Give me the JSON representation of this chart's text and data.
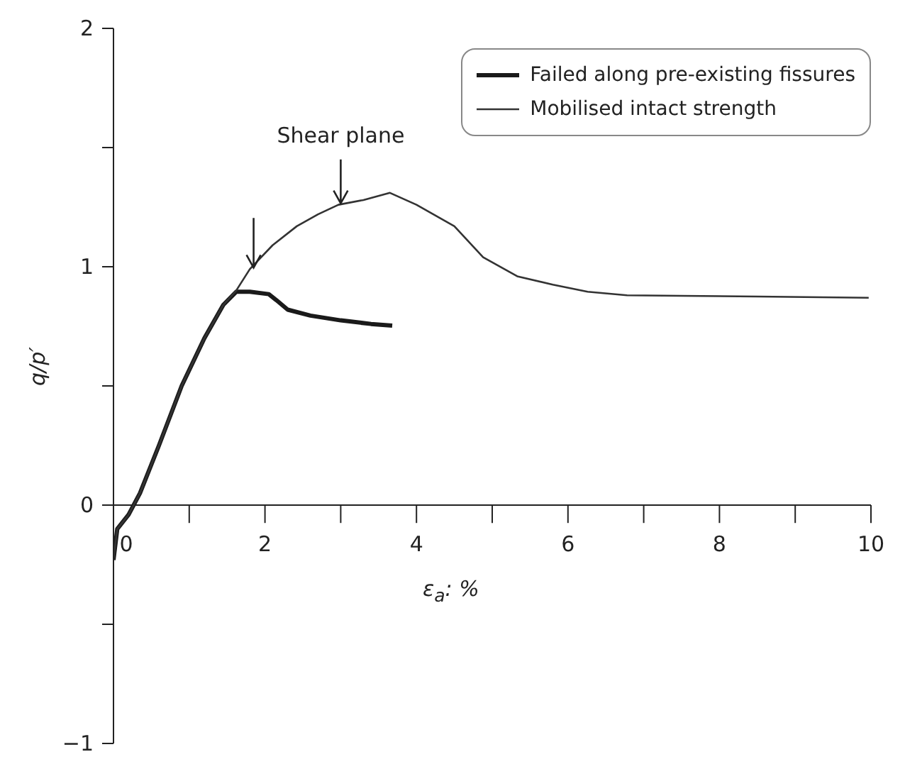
{
  "chart_data": {
    "type": "line",
    "xlabel": "ε$_{a}$: %",
    "ylabel": "q/p′",
    "xlim": [
      0,
      10
    ],
    "ylim": [
      -1,
      2
    ],
    "xticks": [
      0,
      {
        "value": 1,
        "label": null
      },
      2,
      {
        "value": 3,
        "label": null
      },
      4,
      {
        "value": 5,
        "label": null
      },
      6,
      {
        "value": 7,
        "label": null
      },
      8,
      {
        "value": 9,
        "label": null
      },
      10
    ],
    "yticks": [
      -1,
      {
        "value": -0.5,
        "label": null
      },
      0,
      {
        "value": 0.5,
        "label": null
      },
      1,
      {
        "value": 1.5,
        "label": null
      },
      2
    ],
    "series": [
      {
        "name": "Failed along pre-existing fissures",
        "color": "#1a1a1a",
        "x": [
          0,
          0.05,
          0.2,
          0.35,
          0.6,
          0.9,
          1.2,
          1.45,
          1.62,
          1.8,
          2.05,
          2.15,
          2.3,
          2.6,
          3.0,
          3.4,
          3.68
        ],
        "values": [
          -0.23,
          -0.1,
          -0.04,
          0.05,
          0.25,
          0.5,
          0.7,
          0.84,
          0.895,
          0.895,
          0.885,
          0.86,
          0.82,
          0.795,
          0.775,
          0.76,
          0.753
        ]
      },
      {
        "name": "Mobilised intact strength",
        "color": "#333333",
        "x": [
          0,
          0.05,
          0.2,
          0.35,
          0.6,
          0.9,
          1.2,
          1.45,
          1.62,
          1.8,
          2.1,
          2.42,
          2.7,
          2.97,
          3.3,
          3.65,
          4.0,
          4.5,
          4.88,
          5.33,
          5.8,
          6.26,
          6.78,
          7.5,
          8.5,
          9.97
        ],
        "values": [
          -0.23,
          -0.1,
          -0.04,
          0.05,
          0.25,
          0.5,
          0.7,
          0.84,
          0.9,
          0.99,
          1.09,
          1.17,
          1.22,
          1.26,
          1.28,
          1.31,
          1.26,
          1.17,
          1.04,
          0.96,
          0.925,
          0.895,
          0.88,
          0.878,
          0.875,
          0.87
        ]
      }
    ],
    "annotations": [
      {
        "text": "Shear plane",
        "x": 3.0,
        "y": 1.26
      }
    ],
    "legend": "top right",
    "line_style": "solid"
  }
}
